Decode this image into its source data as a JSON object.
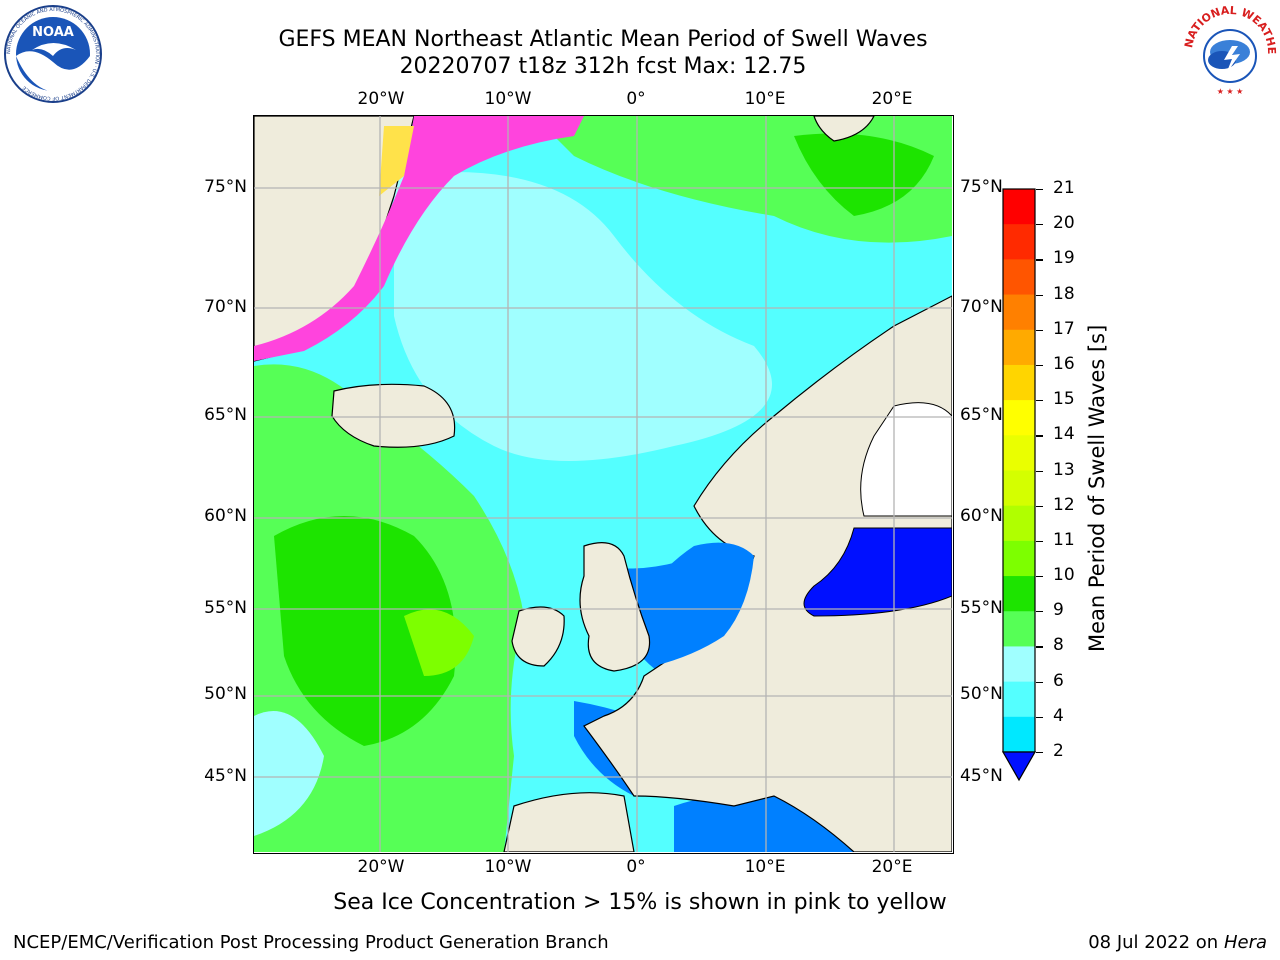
{
  "header": {
    "title_line1": "GEFS MEAN Northeast Atlantic Mean Period of Swell Waves",
    "title_line2": "20220707 t18z 312h fcst   Max: 12.75"
  },
  "logos": {
    "left": {
      "name": "NOAA",
      "ring_text": "NATIONAL OCEANIC AND ATMOSPHERIC ADMINISTRATION · U.S. DEPARTMENT OF COMMERCE"
    },
    "right": {
      "name": "NATIONAL WEATHER SERVICE"
    }
  },
  "map": {
    "lon_labels": [
      "20°W",
      "10°W",
      "0°",
      "10°E",
      "20°E"
    ],
    "lat_labels": [
      "75°N",
      "70°N",
      "65°N",
      "60°N",
      "55°N",
      "50°N",
      "45°N"
    ],
    "colors": {
      "land": "#efecdc",
      "ice_pink": "#ff44dd",
      "ice_yellow": "#ffe24a",
      "grid": "#b4b4b4"
    }
  },
  "colorbar": {
    "label": "Mean Period of Swell Waves [s]",
    "ticks": [
      "21",
      "20",
      "19",
      "18",
      "17",
      "16",
      "15",
      "14",
      "13",
      "12",
      "11",
      "10",
      "9",
      "8",
      "6",
      "4",
      "2"
    ],
    "colors": [
      "#ff0000",
      "#ff2a00",
      "#ff5500",
      "#ff8000",
      "#ffaa00",
      "#ffd500",
      "#ffff00",
      "#eaff00",
      "#d4ff00",
      "#b0ff00",
      "#7dff00",
      "#1de400",
      "#56ff56",
      "#a0ffff",
      "#54ffff",
      "#00e8ff",
      "#0080ff",
      "#0010ff"
    ]
  },
  "footer": {
    "note": "Sea Ice Concentration > 15% is shown in pink to yellow",
    "credit": "NCEP/EMC/Verification Post Processing Product Generation Branch",
    "date": "08 Jul 2022 on",
    "machine": "Hera"
  }
}
